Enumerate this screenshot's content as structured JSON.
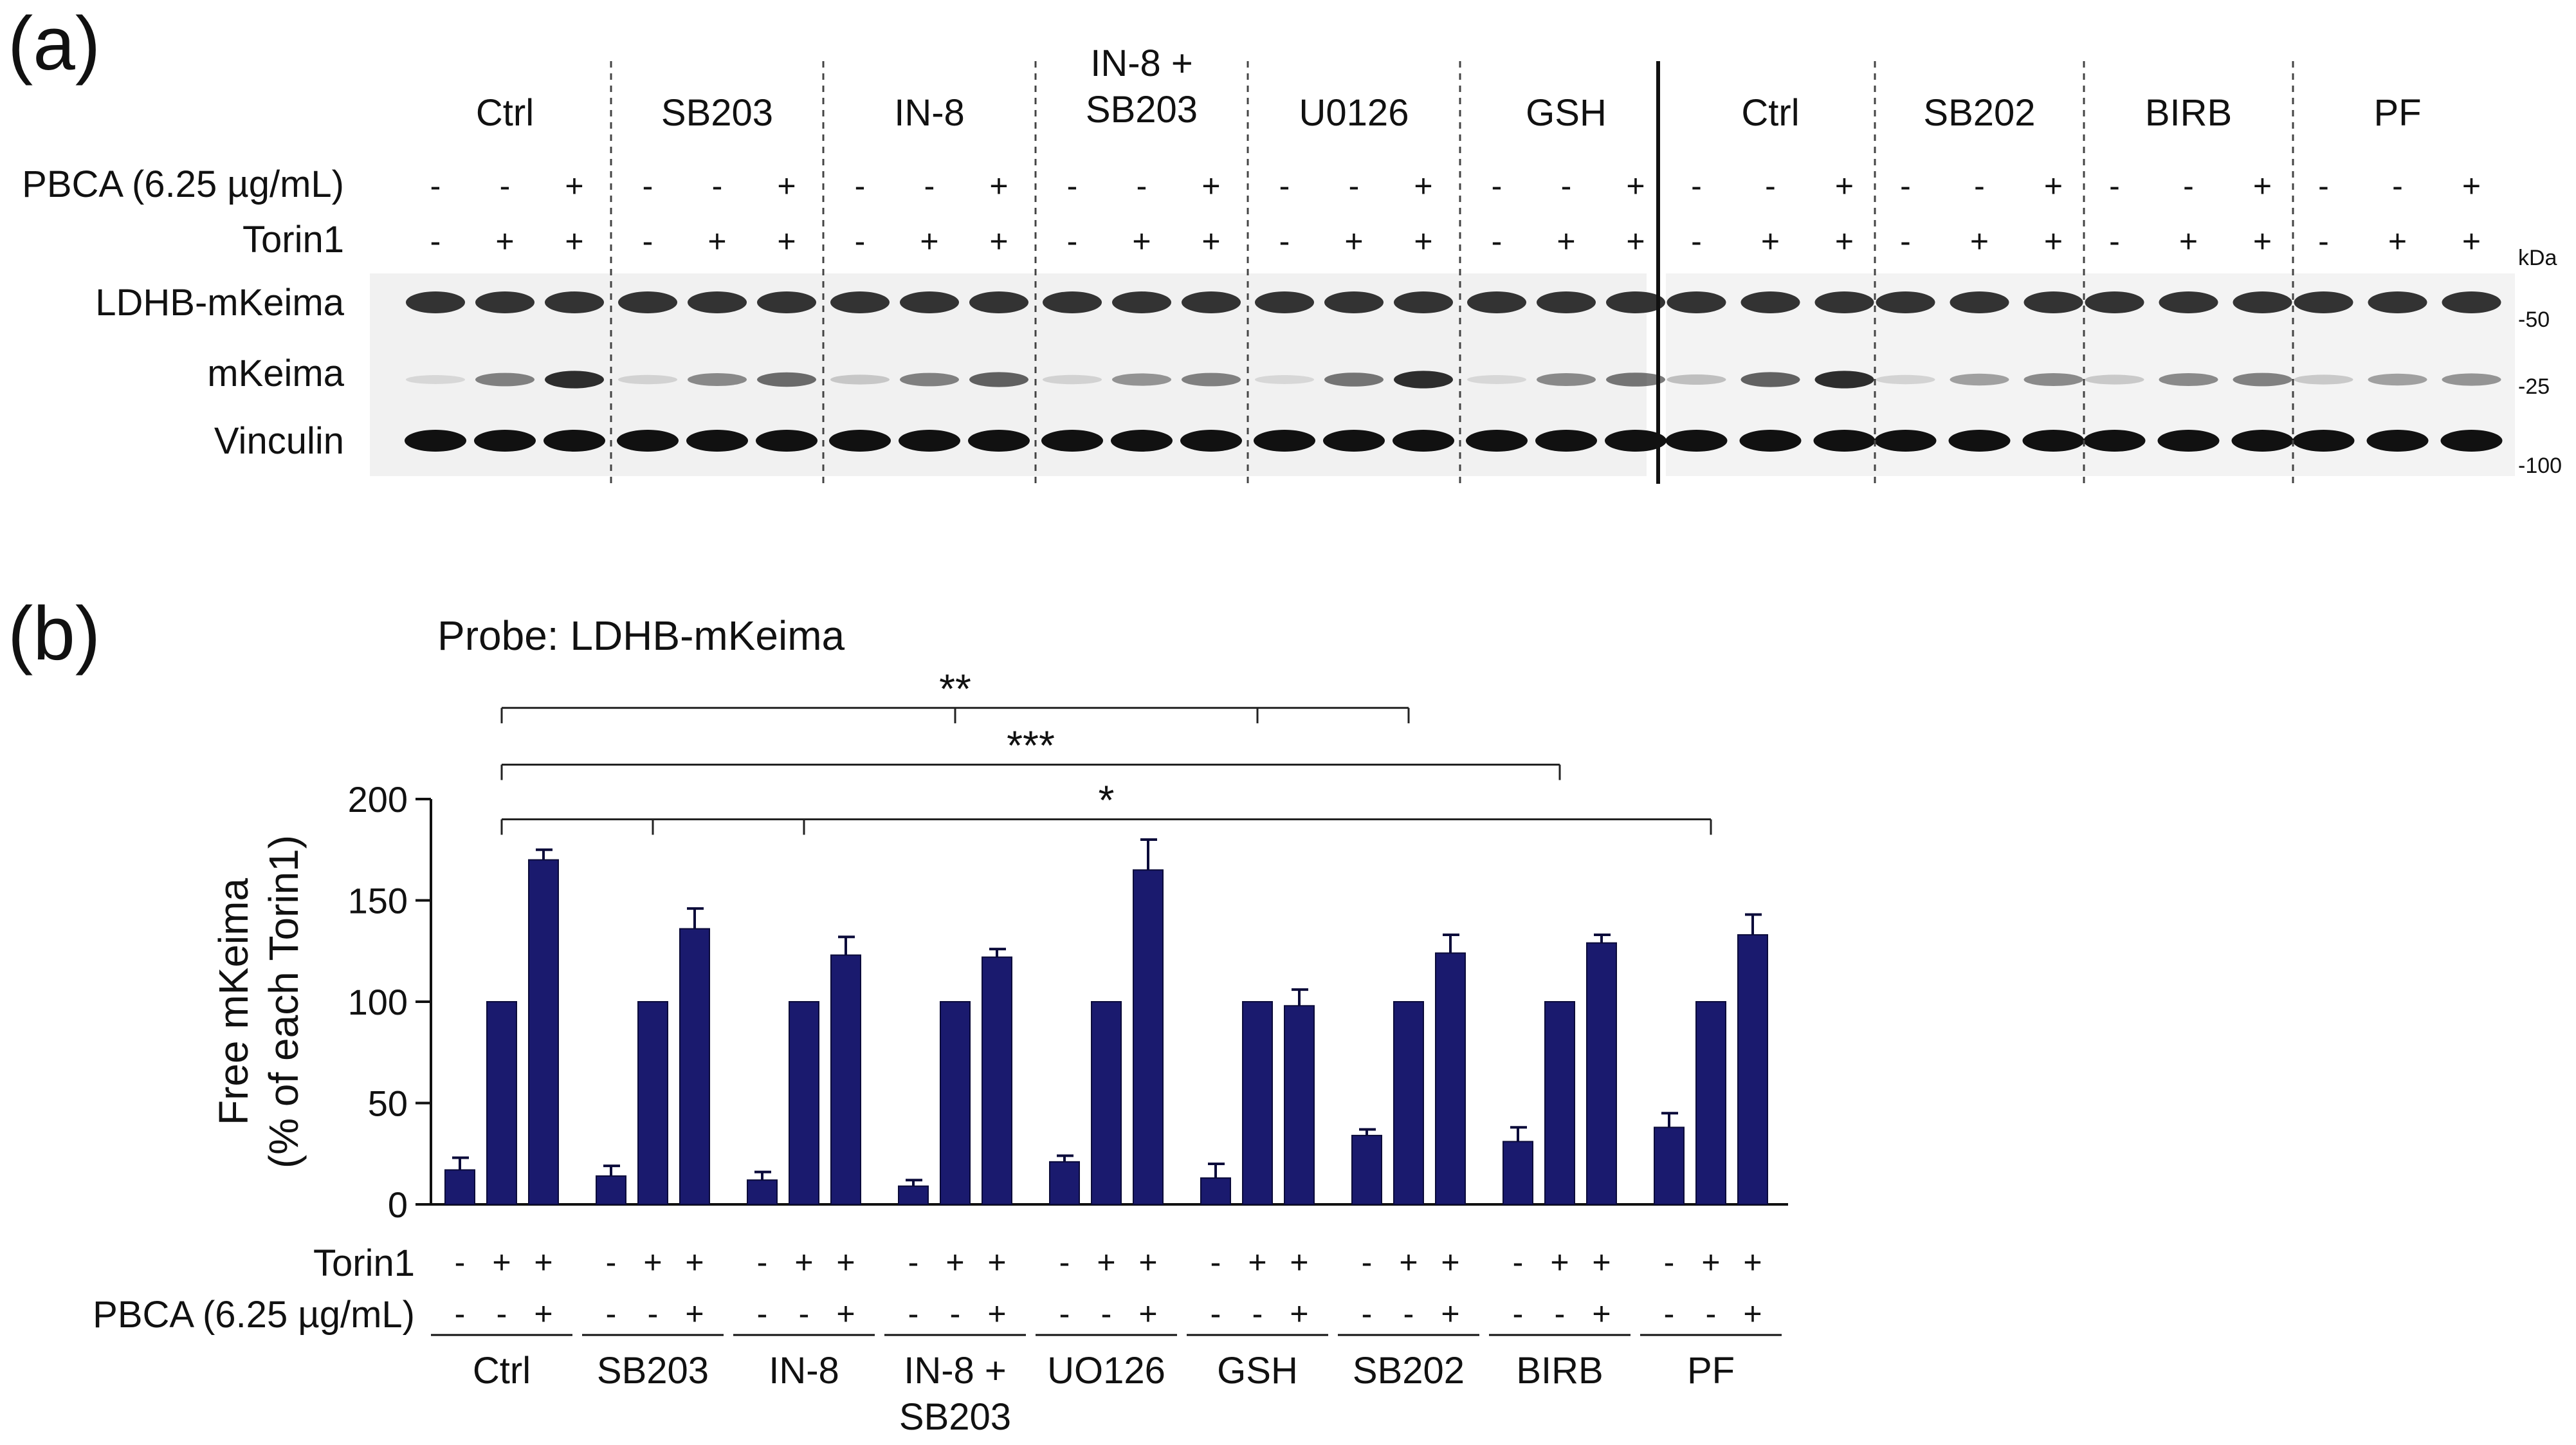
{
  "panel_a": {
    "label": "(a)",
    "groups": [
      [
        "Ctrl"
      ],
      [
        "SB203"
      ],
      [
        "IN-8"
      ],
      [
        "IN-8 +",
        "SB203"
      ],
      [
        "U0126"
      ],
      [
        "GSH"
      ],
      [
        "Ctrl"
      ],
      [
        "SB202"
      ],
      [
        "BIRB"
      ],
      [
        "PF"
      ]
    ],
    "treatment_rows": [
      {
        "label": "PBCA (6.25 µg/mL)",
        "signs": [
          "-",
          "-",
          "+"
        ]
      },
      {
        "label": "Torin1",
        "signs": [
          "-",
          "+",
          "+"
        ]
      }
    ],
    "blot_rows": [
      "LDHB-mKeima",
      "mKeima",
      "Vinculin"
    ],
    "kda_label": "kDa",
    "markers": [
      "-50",
      "-25",
      "-100"
    ]
  },
  "chart_data": {
    "type": "bar",
    "panel_label": "(b)",
    "title": "Probe: LDHB-mKeima",
    "ylabel": [
      "Free mKeima",
      "(% of each Torin1)"
    ],
    "xlabel": "",
    "ylim": [
      0,
      200
    ],
    "yticks": [
      0,
      50,
      100,
      150,
      200
    ],
    "grid": false,
    "bar_color": "#1a1a6e",
    "groups": [
      {
        "name": [
          "Ctrl"
        ],
        "values": [
          17,
          100,
          170
        ],
        "errors": [
          6,
          0,
          5
        ]
      },
      {
        "name": [
          "SB203"
        ],
        "values": [
          14,
          100,
          136
        ],
        "errors": [
          5,
          0,
          10
        ]
      },
      {
        "name": [
          "IN-8"
        ],
        "values": [
          12,
          100,
          123
        ],
        "errors": [
          4,
          0,
          9
        ]
      },
      {
        "name": [
          "IN-8 +",
          "SB203"
        ],
        "values": [
          9,
          100,
          122
        ],
        "errors": [
          3,
          0,
          4
        ]
      },
      {
        "name": [
          "UO126"
        ],
        "values": [
          21,
          100,
          165
        ],
        "errors": [
          3,
          0,
          15
        ]
      },
      {
        "name": [
          "GSH"
        ],
        "values": [
          13,
          100,
          98
        ],
        "errors": [
          7,
          0,
          8
        ]
      },
      {
        "name": [
          "SB202"
        ],
        "values": [
          34,
          100,
          124
        ],
        "errors": [
          3,
          0,
          9
        ]
      },
      {
        "name": [
          "BIRB"
        ],
        "values": [
          31,
          100,
          129
        ],
        "errors": [
          7,
          0,
          4
        ]
      },
      {
        "name": [
          "PF"
        ],
        "values": [
          38,
          100,
          133
        ],
        "errors": [
          7,
          0,
          10
        ]
      }
    ],
    "treatment_rows": [
      {
        "label": "Torin1",
        "signs": [
          "-",
          "+",
          "+"
        ]
      },
      {
        "label": "PBCA (6.25 µg/mL)",
        "signs": [
          "-",
          "-",
          "+"
        ]
      }
    ],
    "significance": [
      {
        "label": "**",
        "from_group": 0,
        "to_groups": [
          3,
          5,
          6
        ],
        "y": 245
      },
      {
        "label": "***",
        "from_group": 0,
        "to_groups": [
          7
        ],
        "y": 217
      },
      {
        "label": "*",
        "from_group": 0,
        "to_groups": [
          1,
          2,
          8
        ],
        "y": 190
      }
    ]
  }
}
